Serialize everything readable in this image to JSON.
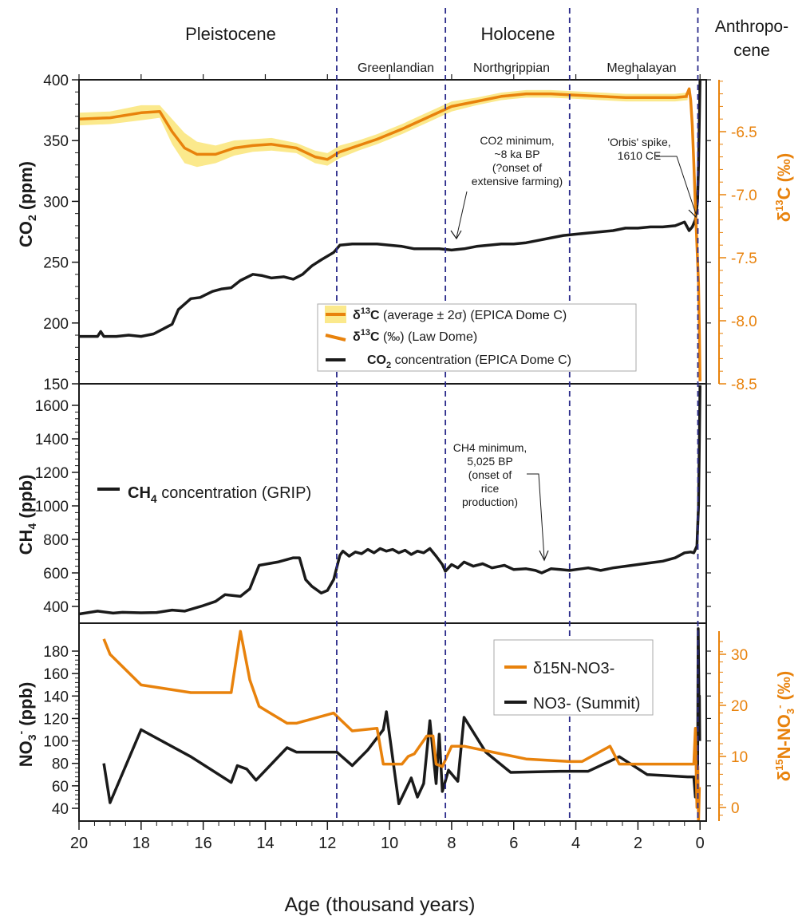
{
  "colors": {
    "black": "#1a1a1a",
    "orange": "#e8820c",
    "band": "#fbe98c",
    "epoch_line": "#2a2a8a"
  },
  "epochs": {
    "pleistocene": "Pleistocene",
    "holocene": "Holocene",
    "anthropocene_1": "Anthropo-",
    "anthropocene_2": "cene",
    "greenlandian": "Greenlandian",
    "northgrippian": "Northgrippian",
    "meghalayan": "Meghalayan"
  },
  "chart_data": {
    "type": "line",
    "xlabel": "Age (thousand years)",
    "xlim": [
      20,
      -0.2
    ],
    "x_ticks": [
      "20",
      "18",
      "16",
      "14",
      "12",
      "10",
      "8",
      "6",
      "4",
      "2",
      "0"
    ],
    "epoch_boundaries_ka": [
      11.7,
      8.2,
      4.2,
      0.07
    ],
    "panels": [
      {
        "name": "co2",
        "ylabel": "CO2 (ppm)",
        "ylim": [
          150,
          400
        ],
        "y_ticks": [
          "150",
          "200",
          "250",
          "300",
          "350",
          "400"
        ],
        "y2label": "δ13C (‰)",
        "y2lim": [
          -8.5,
          -6.1
        ],
        "y2_ticks": [
          "-8.5",
          "-8.0",
          "-7.5",
          "-7.0",
          "-6.5"
        ],
        "legend": {
          "d13c_epica": "(average ± 2σ) (EPICA Dome C)",
          "d13c_law": "(‰) (Law Dome)",
          "co2": "concentration (EPICA Dome C)"
        },
        "annotations": {
          "co2_min": [
            "CO2 minimum,",
            "~8 ka BP",
            "(?onset of",
            "extensive farming)"
          ],
          "orbis": [
            "'Orbis' spike,",
            "1610 CE"
          ]
        },
        "series": [
          {
            "name": "CO2 concentration (EPICA Dome C)",
            "axis": "left",
            "x": [
              20,
              19.4,
              19.3,
              19.2,
              18.8,
              18.4,
              18.0,
              17.6,
              17.3,
              17.0,
              16.8,
              16.4,
              16.1,
              15.7,
              15.4,
              15.1,
              14.8,
              14.4,
              14.1,
              13.8,
              13.4,
              13.1,
              12.8,
              12.5,
              12.2,
              12.0,
              11.8,
              11.6,
              11.2,
              10.8,
              10.4,
              10.0,
              9.6,
              9.2,
              8.8,
              8.4,
              8.0,
              7.6,
              7.2,
              6.8,
              6.4,
              6.0,
              5.6,
              5.2,
              4.8,
              4.4,
              4.0,
              3.6,
              3.2,
              2.8,
              2.4,
              2.0,
              1.6,
              1.2,
              0.8,
              0.5,
              0.35,
              0.25,
              0.15,
              0.08,
              0.05,
              0.02,
              0.0
            ],
            "y": [
              189,
              189,
              193,
              189,
              189,
              190,
              189,
              191,
              195,
              199,
              211,
              220,
              221,
              226,
              228,
              229,
              235,
              240,
              239,
              237,
              238,
              236,
              240,
              247,
              252,
              255,
              258,
              264,
              265,
              265,
              265,
              264,
              263,
              261,
              261,
              261,
              260,
              261,
              263,
              264,
              265,
              265,
              266,
              268,
              270,
              272,
              273,
              274,
              275,
              276,
              278,
              278,
              279,
              279,
              280,
              283,
              276,
              279,
              285,
              300,
              330,
              370,
              400
            ]
          },
          {
            "name": "δ13C (average ± 2σ) (EPICA Dome C)",
            "axis": "right",
            "x": [
              20,
              19.0,
              18.0,
              17.4,
              17.0,
              16.6,
              16.2,
              15.6,
              15.0,
              14.4,
              13.8,
              13.0,
              12.4,
              12.0,
              11.6,
              11.0,
              10.4,
              9.6,
              8.8,
              8.0,
              7.2,
              6.4,
              5.6,
              4.8,
              4.0,
              3.2,
              2.4,
              1.6,
              0.8,
              0.4
            ],
            "y": [
              -6.4,
              -6.39,
              -6.35,
              -6.34,
              -6.5,
              -6.63,
              -6.68,
              -6.68,
              -6.63,
              -6.61,
              -6.6,
              -6.63,
              -6.7,
              -6.72,
              -6.66,
              -6.61,
              -6.56,
              -6.48,
              -6.39,
              -6.3,
              -6.26,
              -6.22,
              -6.2,
              -6.2,
              -6.21,
              -6.22,
              -6.23,
              -6.23,
              -6.23,
              -6.22
            ],
            "band_halfwidth": [
              0.05,
              0.05,
              0.06,
              0.05,
              0.1,
              0.12,
              0.1,
              0.07,
              0.06,
              0.05,
              0.05,
              0.04,
              0.05,
              0.05,
              0.05,
              0.04,
              0.04,
              0.04,
              0.04,
              0.04,
              0.03,
              0.03,
              0.03,
              0.03,
              0.03,
              0.03,
              0.03,
              0.03,
              0.03,
              0.03
            ]
          },
          {
            "name": "δ13C (‰) (Law Dome)",
            "axis": "right",
            "x": [
              0.45,
              0.35,
              0.3,
              0.25,
              0.2,
              0.15,
              0.1,
              0.05,
              0.02,
              0.0
            ],
            "y": [
              -6.22,
              -6.16,
              -6.25,
              -6.45,
              -6.75,
              -7.1,
              -7.4,
              -7.7,
              -8.1,
              -8.48
            ]
          }
        ]
      },
      {
        "name": "ch4",
        "ylabel": "CH4 (ppb)",
        "ylim": [
          330,
          1720
        ],
        "y_ticks": [
          "400",
          "600",
          "800",
          "1000",
          "1200",
          "1400",
          "1600"
        ],
        "legend": {
          "ch4": "concentration (GRIP)"
        },
        "annotations": {
          "ch4_min": [
            "CH4 minimum,",
            "5,025 BP",
            "(onset of",
            "rice",
            "production)"
          ]
        },
        "series": [
          {
            "name": "CH4 concentration (GRIP)",
            "axis": "left",
            "x": [
              20,
              19.4,
              18.9,
              18.6,
              18.0,
              17.5,
              17.0,
              16.6,
              16.0,
              15.6,
              15.3,
              14.8,
              14.5,
              14.2,
              13.6,
              13.1,
              12.9,
              12.7,
              12.5,
              12.2,
              12.0,
              11.8,
              11.6,
              11.5,
              11.3,
              11.1,
              10.9,
              10.7,
              10.5,
              10.3,
              10.1,
              9.9,
              9.7,
              9.5,
              9.3,
              9.1,
              8.9,
              8.7,
              8.5,
              8.3,
              8.2,
              8.0,
              7.8,
              7.6,
              7.3,
              7.0,
              6.7,
              6.3,
              6.0,
              5.6,
              5.3,
              5.1,
              4.8,
              4.5,
              4.2,
              4.0,
              3.6,
              3.2,
              2.8,
              2.4,
              2.0,
              1.6,
              1.2,
              0.8,
              0.5,
              0.3,
              0.2,
              0.1,
              0.05,
              0.02,
              0.0
            ],
            "y": [
              355,
              372,
              360,
              365,
              362,
              364,
              378,
              372,
              405,
              430,
              470,
              460,
              505,
              645,
              665,
              690,
              690,
              560,
              520,
              480,
              495,
              560,
              705,
              730,
              700,
              725,
              715,
              740,
              720,
              745,
              730,
              740,
              720,
              735,
              710,
              730,
              720,
              745,
              700,
              650,
              610,
              650,
              630,
              665,
              640,
              655,
              630,
              645,
              620,
              625,
              615,
              600,
              625,
              620,
              615,
              620,
              630,
              615,
              630,
              640,
              650,
              660,
              670,
              690,
              720,
              725,
              720,
              760,
              1000,
              1400,
              1720
            ]
          }
        ]
      },
      {
        "name": "no3",
        "ylabel": "NO3- (ppb)",
        "ylim": [
          30,
          197
        ],
        "y_ticks": [
          "40",
          "60",
          "80",
          "100",
          "120",
          "140",
          "160",
          "180"
        ],
        "y2label": "δ15N-NO3- (‰)",
        "y2lim": [
          -5.5,
          35
        ],
        "y2_ticks": [
          "0",
          "10",
          "20",
          "30"
        ],
        "legend": {
          "d15n": "δ15N-NO3-",
          "no3": "NO3- (Summit)"
        },
        "series": [
          {
            "name": "NO3- (Summit)",
            "axis": "left",
            "x": [
              19.2,
              19.0,
              18.0,
              16.4,
              15.1,
              14.9,
              14.6,
              14.3,
              13.3,
              13.0,
              12.5,
              11.7,
              11.2,
              10.7,
              10.2,
              10.1,
              9.7,
              9.3,
              9.1,
              8.9,
              8.7,
              8.5,
              8.4,
              8.3,
              8.1,
              7.8,
              7.6,
              6.9,
              6.1,
              4.5,
              3.6,
              2.9,
              2.6,
              1.7,
              0.4,
              0.2,
              0.15,
              0.1,
              0.08,
              0.06,
              0.03,
              0.02,
              0.01
            ],
            "y": [
              80,
              45,
              110,
              86,
              63,
              78,
              75,
              65,
              94,
              90,
              90,
              90,
              78,
              92,
              110,
              126,
              44,
              67,
              50,
              62,
              118,
              62,
              106,
              55,
              74,
              64,
              121,
              90,
              72,
              73,
              73,
              82,
              86,
              70,
              68,
              68,
              50,
              80,
              60,
              200,
              120,
              140,
              100
            ]
          },
          {
            "name": "δ15N-NO3-",
            "axis": "right",
            "x": [
              19.2,
              19.0,
              18.0,
              16.4,
              15.1,
              14.8,
              14.5,
              14.2,
              13.3,
              13.0,
              11.8,
              11.6,
              11.2,
              10.4,
              10.2,
              10.0,
              9.6,
              9.4,
              9.2,
              8.8,
              8.6,
              8.5,
              8.3,
              8.0,
              7.6,
              6.8,
              5.6,
              4.2,
              3.8,
              2.9,
              2.6,
              0.6,
              0.2,
              0.15,
              0.1,
              0.07,
              0.05,
              0.02
            ],
            "y": [
              33,
              30,
              24,
              22.5,
              22.5,
              34.5,
              25,
              19.8,
              16.5,
              16.5,
              18.5,
              17.3,
              15.0,
              15.5,
              8.5,
              8.5,
              8.5,
              10,
              10.5,
              14,
              14,
              8.5,
              8.0,
              12,
              12,
              11,
              9.5,
              9.0,
              9.0,
              12,
              8.5,
              8.5,
              8.5,
              15.5,
              0,
              8,
              -3,
              4
            ]
          }
        ]
      }
    ]
  }
}
